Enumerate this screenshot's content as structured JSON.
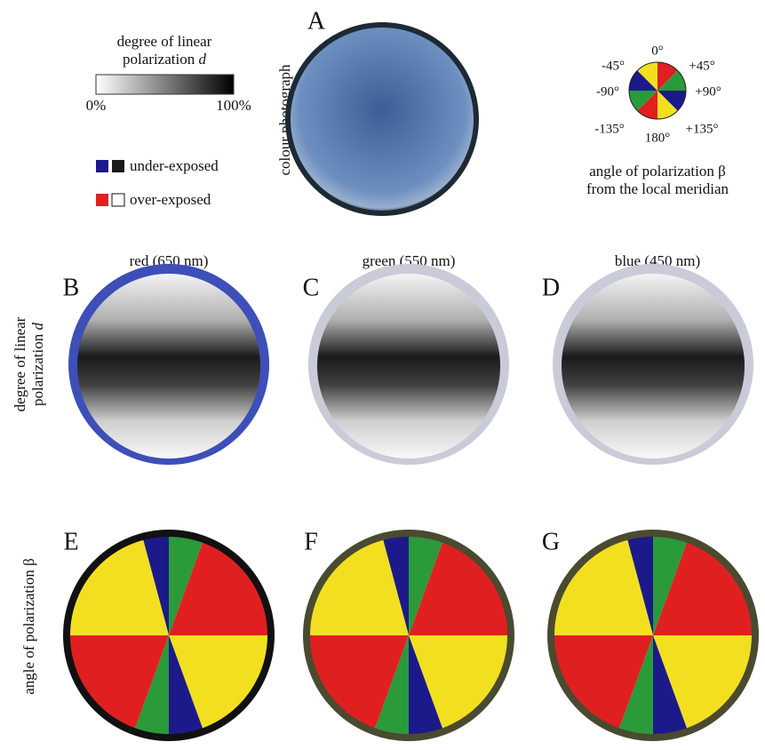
{
  "legend": {
    "title_line1": "degree of linear",
    "title_line2": "polarization",
    "title_symbol": "d",
    "min_label": "0%",
    "max_label": "100%",
    "under_exposed": "under-exposed",
    "over_exposed": "over-exposed"
  },
  "panel_a": {
    "letter": "A",
    "label": "colour photograph"
  },
  "angle_key": {
    "labels": {
      "top": "0°",
      "upper_left": "-45°",
      "upper_right": "+45°",
      "left": "-90°",
      "right": "+90°",
      "lower_left": "-135°",
      "lower_right": "+135°",
      "bottom": "180°"
    },
    "caption_line1": "angle of polarization β",
    "caption_line2": "from the local meridian"
  },
  "columns": [
    "red (650 nm)",
    "green (550 nm)",
    "blue (450 nm)"
  ],
  "rows": {
    "degree": {
      "line1": "degree of linear",
      "line2": "polarization",
      "symbol": "d",
      "letters": [
        "B",
        "C",
        "D"
      ]
    },
    "angle": {
      "label": "angle of polarization β",
      "letters": [
        "E",
        "F",
        "G"
      ]
    }
  }
}
